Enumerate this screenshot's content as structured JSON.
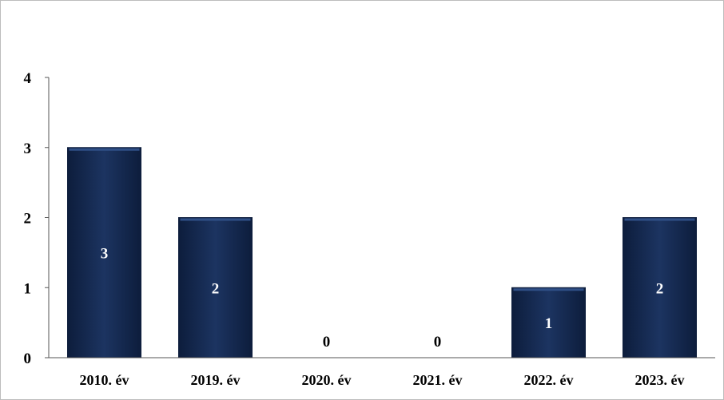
{
  "chart_data": {
    "type": "bar",
    "title": "",
    "xlabel": "",
    "ylabel": "",
    "categories": [
      "2010. év",
      "2019. év",
      "2020. év",
      "2021. év",
      "2022. év",
      "2023. év"
    ],
    "values": [
      3,
      2,
      0,
      0,
      1,
      2
    ],
    "data_labels": [
      "3",
      "2",
      "0",
      "0",
      "1",
      "2"
    ],
    "ylim": [
      0,
      4
    ],
    "yticks": [
      "0",
      "1",
      "2",
      "3",
      "4"
    ],
    "grid": false,
    "legend": "none",
    "colors": {
      "bar": "#1c3461",
      "bar_edge": "#0d1d3c",
      "bar_highlight": "#2f4f86",
      "label_inside": "#ffffff",
      "label_outside": "#000000",
      "axis": "#555555"
    }
  }
}
